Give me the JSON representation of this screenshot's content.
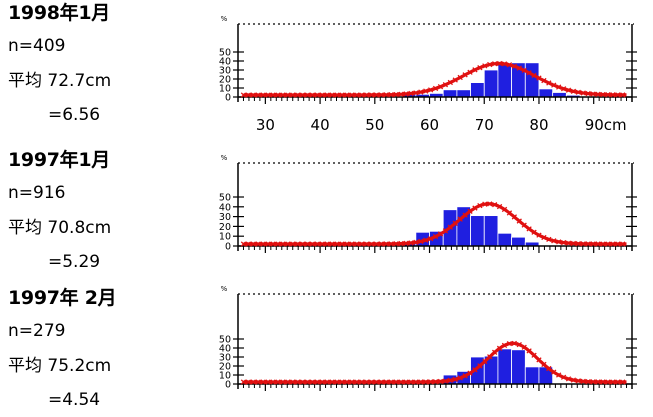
{
  "samples": [
    {
      "title": "1998年1月",
      "n": "n=409",
      "mean": "平均 72.7cm",
      "sd": "=6.56"
    },
    {
      "title": "1997年1月",
      "n": "n=916",
      "mean": "平均 70.8cm",
      "sd": "=5.29"
    },
    {
      "title": "1997年 2月",
      "n": "n=279",
      "mean": "平均 75.2cm",
      "sd": "=4.54"
    }
  ],
  "colors": {
    "bars": "#1f1fe0",
    "curve": "#e01010",
    "axis": "#000000"
  },
  "chart_data": [
    {
      "type": "bar",
      "ylabel": "%",
      "yticks": [
        0,
        10,
        20,
        30,
        40,
        50
      ],
      "ylim": [
        0,
        55
      ],
      "xlim": [
        25,
        97
      ],
      "xticks": [
        "30",
        "40",
        "50",
        "60",
        "70",
        "80",
        "90cm"
      ],
      "bin_width": 2.5,
      "bins_start": [
        55,
        57.5,
        60,
        62.5,
        65,
        67.5,
        70,
        72.5,
        75,
        77.5,
        80,
        82.5,
        85
      ],
      "values": [
        3,
        3,
        4,
        8,
        8,
        16,
        30,
        36,
        38,
        38,
        9,
        5,
        2
      ],
      "curve": {
        "mean": 72.7,
        "sd": 6.56,
        "peak": 35
      }
    },
    {
      "type": "bar",
      "ylabel": "%",
      "yticks": [
        0,
        10,
        20,
        30,
        40,
        50
      ],
      "ylim": [
        0,
        55
      ],
      "xlim": [
        25,
        97
      ],
      "bin_width": 2.5,
      "bins_start": [
        55,
        57.5,
        60,
        62.5,
        65,
        67.5,
        70,
        72.5,
        75,
        77.5
      ],
      "values": [
        3,
        14,
        15,
        37,
        40,
        31,
        31,
        13,
        9,
        4
      ],
      "curve": {
        "mean": 70.8,
        "sd": 5.29,
        "peak": 41
      }
    },
    {
      "type": "bar",
      "ylabel": "%",
      "yticks": [
        0,
        10,
        20,
        30,
        40,
        50
      ],
      "ylim": [
        0,
        55
      ],
      "xlim": [
        25,
        97
      ],
      "bin_width": 2.5,
      "bins_start": [
        62.5,
        65,
        67.5,
        70,
        72.5,
        75,
        77.5,
        80
      ],
      "values": [
        10,
        14,
        30,
        31,
        39,
        38,
        19,
        19
      ],
      "curve": {
        "mean": 75.2,
        "sd": 4.54,
        "peak": 43
      }
    }
  ]
}
